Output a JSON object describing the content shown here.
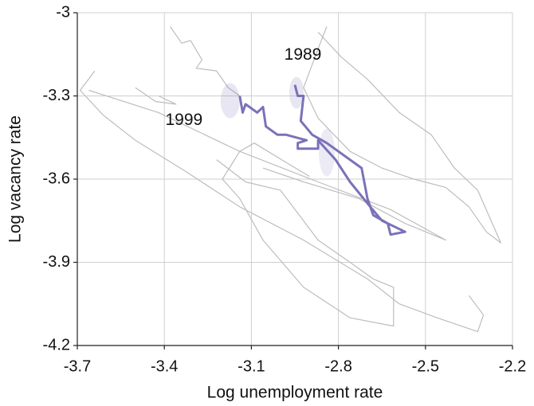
{
  "chart_data": {
    "type": "line",
    "x_label": "Log unemployment rate",
    "y_label": "Log vacancy rate",
    "xlim": [
      -3.7,
      -2.2
    ],
    "ylim": [
      -4.2,
      -3
    ],
    "xticks": [
      -3.7,
      -3.4,
      -3.1,
      -2.8,
      -2.5,
      -2.2
    ],
    "yticks": [
      -4.2,
      -3.9,
      -3.6,
      -3.3,
      -3
    ],
    "grid": true,
    "annotations": [
      "1989",
      "1999"
    ],
    "series": [
      {
        "color": "#bdbdbd",
        "x": [
          -3.64,
          -3.69,
          -3.61,
          -3.5,
          -3.33,
          -3.14,
          -2.92,
          -2.7,
          -2.59,
          -2.46,
          -2.32,
          -2.3,
          -2.35
        ],
        "values": [
          -3.21,
          -3.28,
          -3.37,
          -3.46,
          -3.57,
          -3.7,
          -3.82,
          -3.96,
          -4.05,
          -4.1,
          -4.15,
          -4.09,
          -4.02
        ]
      },
      {
        "color": "#bdbdbd",
        "x": [
          -2.87,
          -2.79,
          -2.7,
          -2.59,
          -2.48,
          -2.4,
          -2.32,
          -2.24,
          -2.29,
          -2.35,
          -2.43,
          -2.54,
          -2.65,
          -2.76,
          -2.87,
          -2.92,
          -2.87,
          -2.84
        ],
        "values": [
          -3.07,
          -3.16,
          -3.24,
          -3.36,
          -3.44,
          -3.56,
          -3.64,
          -3.83,
          -3.79,
          -3.7,
          -3.63,
          -3.6,
          -3.56,
          -3.5,
          -3.38,
          -3.27,
          -3.13,
          -3.05
        ]
      },
      {
        "color": "#bdbdbd",
        "x": [
          -3.22,
          -3.12,
          -3.0,
          -2.87,
          -2.76,
          -2.68,
          -2.61,
          -2.61,
          -2.76,
          -2.92,
          -3.06,
          -3.14,
          -3.2,
          -3.14,
          -3.09,
          -2.98,
          -2.9
        ],
        "values": [
          -3.53,
          -3.61,
          -3.64,
          -3.82,
          -3.9,
          -3.96,
          -3.99,
          -4.13,
          -4.1,
          -3.99,
          -3.82,
          -3.67,
          -3.6,
          -3.5,
          -3.47,
          -3.54,
          -3.59
        ]
      },
      {
        "color": "#bdbdbd",
        "x": [
          -3.66,
          -3.42,
          -3.14,
          -2.87,
          -2.62,
          -2.43,
          -2.57,
          -2.73,
          -2.92,
          -3.06
        ],
        "values": [
          -3.28,
          -3.36,
          -3.5,
          -3.61,
          -3.71,
          -3.82,
          -3.76,
          -3.67,
          -3.61,
          -3.56
        ]
      },
      {
        "color": "#bdbdbd",
        "x": [
          -3.38,
          -3.34,
          -3.31,
          -3.27,
          -3.29,
          -3.22,
          -3.18,
          -3.14
        ],
        "values": [
          -3.05,
          -3.11,
          -3.1,
          -3.17,
          -3.2,
          -3.21,
          -3.27,
          -3.3
        ]
      },
      {
        "color": "#bdbdbd",
        "x": [
          -3.5,
          -3.43,
          -3.36,
          -3.42
        ],
        "values": [
          -3.27,
          -3.32,
          -3.33,
          -3.3
        ]
      },
      {
        "color": "#7a72b8",
        "x": [
          -2.95,
          -2.94,
          -2.92,
          -2.93,
          -2.89,
          -2.84,
          -2.72,
          -2.7,
          -2.68,
          -2.63,
          -2.62,
          -2.57,
          -2.61,
          -2.65,
          -2.69,
          -2.76,
          -2.81,
          -2.87,
          -2.87,
          -2.91,
          -2.94,
          -2.94,
          -2.91,
          -2.98,
          -3.01,
          -3.05,
          -3.06,
          -3.08,
          -3.12,
          -3.13,
          -3.14
        ],
        "values": [
          -3.26,
          -3.3,
          -3.3,
          -3.39,
          -3.44,
          -3.47,
          -3.56,
          -3.67,
          -3.73,
          -3.76,
          -3.8,
          -3.79,
          -3.77,
          -3.75,
          -3.7,
          -3.61,
          -3.53,
          -3.46,
          -3.49,
          -3.49,
          -3.49,
          -3.47,
          -3.46,
          -3.44,
          -3.44,
          -3.41,
          -3.34,
          -3.36,
          -3.33,
          -3.36,
          -3.3
        ]
      }
    ]
  }
}
